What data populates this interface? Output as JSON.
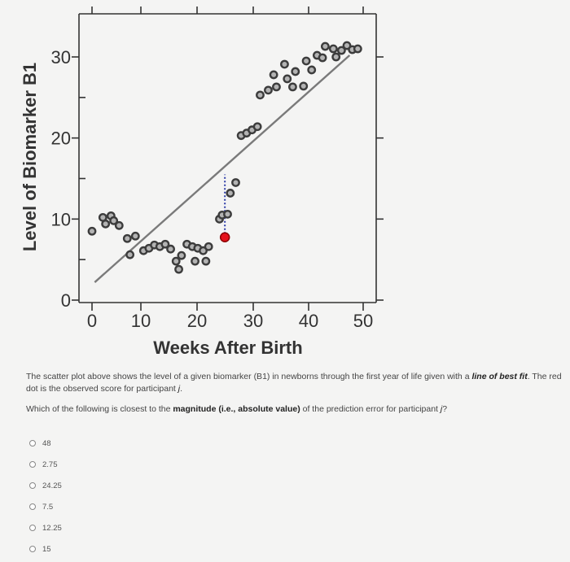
{
  "chart_data": {
    "type": "scatter",
    "xlabel": "Weeks After Birth",
    "ylabel": "Level of Biomarker B1",
    "x_ticks": [
      0,
      10,
      20,
      30,
      40,
      50
    ],
    "y_ticks": [
      0,
      10,
      20,
      30
    ],
    "xlim": [
      -1,
      52
    ],
    "ylim": [
      -0.5,
      35
    ],
    "grid": false,
    "points": [
      {
        "x": 0,
        "y": 8.5
      },
      {
        "x": 2,
        "y": 10.2
      },
      {
        "x": 3.5,
        "y": 10.4
      },
      {
        "x": 2.5,
        "y": 9.4
      },
      {
        "x": 4,
        "y": 9.8
      },
      {
        "x": 5,
        "y": 9.2
      },
      {
        "x": 6.5,
        "y": 7.6
      },
      {
        "x": 8,
        "y": 7.9
      },
      {
        "x": 7,
        "y": 5.6
      },
      {
        "x": 9.5,
        "y": 6.1
      },
      {
        "x": 10.5,
        "y": 6.4
      },
      {
        "x": 11.5,
        "y": 6.8
      },
      {
        "x": 12.5,
        "y": 6.6
      },
      {
        "x": 13.5,
        "y": 6.9
      },
      {
        "x": 14.5,
        "y": 6.3
      },
      {
        "x": 15.5,
        "y": 4.8
      },
      {
        "x": 16.5,
        "y": 5.5
      },
      {
        "x": 16,
        "y": 3.8
      },
      {
        "x": 17.5,
        "y": 6.9
      },
      {
        "x": 18.5,
        "y": 6.6
      },
      {
        "x": 19.5,
        "y": 6.4
      },
      {
        "x": 20.5,
        "y": 6.1
      },
      {
        "x": 19,
        "y": 4.8
      },
      {
        "x": 21,
        "y": 4.8
      },
      {
        "x": 21.5,
        "y": 6.6
      },
      {
        "x": 23.5,
        "y": 10.0
      },
      {
        "x": 24,
        "y": 10.5
      },
      {
        "x": 25,
        "y": 10.6
      },
      {
        "x": 25.5,
        "y": 13.2
      },
      {
        "x": 26.5,
        "y": 14.5
      },
      {
        "x": 27.5,
        "y": 20.3
      },
      {
        "x": 28.5,
        "y": 20.6
      },
      {
        "x": 29.5,
        "y": 21.0
      },
      {
        "x": 30.5,
        "y": 21.4
      },
      {
        "x": 31,
        "y": 25.3
      },
      {
        "x": 32.5,
        "y": 25.9
      },
      {
        "x": 34,
        "y": 26.3
      },
      {
        "x": 33.5,
        "y": 27.8
      },
      {
        "x": 36,
        "y": 27.3
      },
      {
        "x": 35.5,
        "y": 29.1
      },
      {
        "x": 37.5,
        "y": 28.2
      },
      {
        "x": 37,
        "y": 26.3
      },
      {
        "x": 39,
        "y": 26.4
      },
      {
        "x": 39.5,
        "y": 29.5
      },
      {
        "x": 40.5,
        "y": 28.4
      },
      {
        "x": 41.5,
        "y": 30.2
      },
      {
        "x": 42.5,
        "y": 29.9
      },
      {
        "x": 43,
        "y": 31.3
      },
      {
        "x": 44.5,
        "y": 31.0
      },
      {
        "x": 45,
        "y": 30.0
      },
      {
        "x": 46,
        "y": 30.8
      },
      {
        "x": 47,
        "y": 31.4
      },
      {
        "x": 48,
        "y": 30.9
      },
      {
        "x": 49,
        "y": 31.0
      }
    ],
    "highlight_point": {
      "x": 24.5,
      "y": 7.75,
      "color": "#e5111a"
    },
    "fit_line": {
      "x1": 0.5,
      "y1": 2.2,
      "x2": 47.5,
      "y2": 30.2
    },
    "residual": {
      "x": 24.5,
      "y_from": 7.75,
      "y_to": 15.5,
      "color": "#2b3aa8"
    }
  },
  "question": {
    "p1_a": "The scatter plot above shows the level of a given biomarker (B1) in newborns through the first year of life given with a ",
    "p1_b": "line of best fit",
    "p1_c": ". The red dot is the observed score for participant ",
    "p1_j": "j",
    "p1_d": ".",
    "p2_a": "Which of the following is closest to the ",
    "p2_b": "magnitude (i.e., absolute value)",
    "p2_c": " of the prediction error for participant ",
    "p2_j": "j",
    "p2_d": "?"
  },
  "options": [
    "48",
    "2.75",
    "24.25",
    "7.5",
    "12.25",
    "15"
  ]
}
